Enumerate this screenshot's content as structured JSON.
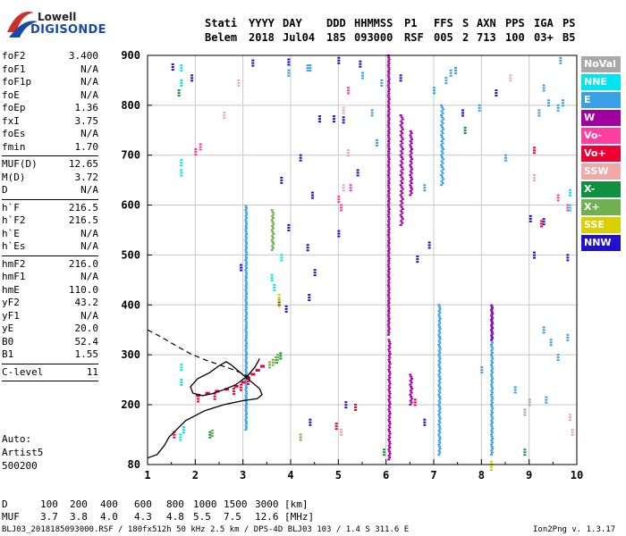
{
  "logo": {
    "line1": "Lowell",
    "line2": "DIGISONDE"
  },
  "header": {
    "row1": [
      "Stati",
      "YYYY",
      "DAY",
      "DDD",
      "HHMMSS",
      "P1",
      "FFS",
      "S",
      "AXN",
      "PPS",
      "IGA",
      "PS"
    ],
    "row2": [
      "Belem",
      "2018",
      "Jul04",
      "185",
      "093000",
      "RSF",
      "005",
      "2",
      "713",
      "100",
      "03+",
      "B5"
    ]
  },
  "params": {
    "g1": [
      [
        "foF2",
        "3.400"
      ],
      [
        "foF1",
        "N/A"
      ],
      [
        "foF1p",
        "N/A"
      ],
      [
        "foE",
        "N/A"
      ],
      [
        "foEp",
        "1.36"
      ],
      [
        "fxI",
        "3.75"
      ],
      [
        "foEs",
        "N/A"
      ],
      [
        "fmin",
        "1.70"
      ]
    ],
    "g2": [
      [
        "MUF(D)",
        "12.65"
      ],
      [
        "M(D)",
        "3.72"
      ],
      [
        "D",
        "N/A"
      ]
    ],
    "g3": [
      [
        "h`F",
        "216.5"
      ],
      [
        "h`F2",
        "216.5"
      ],
      [
        "h`E",
        "N/A"
      ],
      [
        "h`Es",
        "N/A"
      ]
    ],
    "g4": [
      [
        "hmF2",
        "216.0"
      ],
      [
        "hmF1",
        "N/A"
      ],
      [
        "hmE",
        "110.0"
      ],
      [
        "yF2",
        "43.2"
      ],
      [
        "yF1",
        "N/A"
      ],
      [
        "yE",
        "20.0"
      ],
      [
        "B0",
        "52.4"
      ],
      [
        "B1",
        "1.55"
      ]
    ],
    "g5": [
      [
        "C-level",
        "11"
      ]
    ]
  },
  "auto": {
    "line1": "Auto:",
    "line2": "Artist5",
    "line3": "500200"
  },
  "legend": [
    {
      "label": "NoVal",
      "color": "#a8a8a8"
    },
    {
      "label": "NNE",
      "color": "#00e5f0"
    },
    {
      "label": "E",
      "color": "#3aa0e8"
    },
    {
      "label": "W",
      "color": "#a000a0"
    },
    {
      "label": "Vo-",
      "color": "#ff3fa0"
    },
    {
      "label": "Vo+",
      "color": "#ee0033"
    },
    {
      "label": "SSW",
      "color": "#f0a8a8"
    },
    {
      "label": "X-",
      "color": "#109040"
    },
    {
      "label": "X+",
      "color": "#70b050"
    },
    {
      "label": "SSE",
      "color": "#d8d000"
    },
    {
      "label": "NNW",
      "color": "#2010d0"
    }
  ],
  "chart_data": {
    "type": "scatter",
    "title": "",
    "xlabel": "",
    "ylabel": "",
    "x_range": [
      1,
      10
    ],
    "y_range": [
      80,
      900
    ],
    "x_ticks": [
      1,
      2,
      3,
      4,
      5,
      6,
      7,
      8,
      9,
      10
    ],
    "y_ticks": [
      80,
      200,
      300,
      400,
      500,
      600,
      700,
      800,
      900
    ],
    "grid": true,
    "legend_position": "right",
    "profile_solid": [
      [
        1.0,
        93
      ],
      [
        1.2,
        100
      ],
      [
        1.35,
        118
      ],
      [
        1.45,
        135
      ],
      [
        1.8,
        168
      ],
      [
        2.2,
        188
      ],
      [
        2.6,
        200
      ],
      [
        3.0,
        208
      ],
      [
        3.3,
        212
      ],
      [
        3.4,
        220
      ],
      [
        3.35,
        232
      ],
      [
        3.2,
        244
      ],
      [
        3.05,
        256
      ],
      [
        2.9,
        268
      ],
      [
        2.75,
        280
      ],
      [
        2.65,
        286
      ],
      [
        2.5,
        278
      ],
      [
        2.3,
        264
      ],
      [
        2.05,
        252
      ],
      [
        1.9,
        236
      ],
      [
        1.95,
        223
      ],
      [
        2.15,
        218
      ],
      [
        2.35,
        222
      ],
      [
        2.6,
        230
      ],
      [
        2.85,
        240
      ],
      [
        3.1,
        258
      ],
      [
        3.25,
        275
      ],
      [
        3.35,
        292
      ]
    ],
    "profile_dashed": [
      [
        1.0,
        350
      ],
      [
        1.3,
        335
      ],
      [
        1.6,
        318
      ],
      [
        1.9,
        302
      ],
      [
        2.2,
        290
      ],
      [
        2.5,
        280
      ],
      [
        2.8,
        270
      ],
      [
        3.0,
        262
      ],
      [
        3.2,
        252
      ]
    ],
    "echo_trace": [
      [
        2.05,
        218
      ],
      [
        2.25,
        222
      ],
      [
        2.45,
        226
      ],
      [
        2.65,
        230
      ],
      [
        2.85,
        236
      ],
      [
        3.0,
        244
      ],
      [
        3.1,
        252
      ],
      [
        3.2,
        260
      ],
      [
        3.3,
        268
      ],
      [
        3.4,
        276
      ]
    ],
    "echo_bands": [
      {
        "color": "#a000a0",
        "x": 6.04,
        "y0": 340,
        "y1": 900,
        "dx": 0.02
      },
      {
        "color": "#a000a0",
        "x": 6.05,
        "y0": 90,
        "y1": 330,
        "dx": 0.03
      },
      {
        "color": "#a000a0",
        "x": 6.3,
        "y0": 560,
        "y1": 780,
        "dx": 0.05
      },
      {
        "color": "#a000a0",
        "x": 6.5,
        "y0": 620,
        "y1": 750,
        "dx": 0.04
      },
      {
        "color": "#a000a0",
        "x": 6.5,
        "y0": 200,
        "y1": 260,
        "dx": 0.04
      },
      {
        "color": "#3aa0e8",
        "x": 7.15,
        "y0": 640,
        "y1": 800,
        "dx": 0.05
      },
      {
        "color": "#3aa0e8",
        "x": 7.1,
        "y0": 100,
        "y1": 400,
        "dx": 0.03
      },
      {
        "color": "#3aa0e8",
        "x": 8.2,
        "y0": 100,
        "y1": 400,
        "dx": 0.03
      },
      {
        "color": "#a000a0",
        "x": 8.2,
        "y0": 330,
        "y1": 400,
        "dx": 0.03
      },
      {
        "color": "#3aa0e8",
        "x": 3.05,
        "y0": 150,
        "y1": 600,
        "dx": 0.02
      },
      {
        "color": "#70b050",
        "x": 3.6,
        "y0": 510,
        "y1": 590,
        "dx": 0.04
      }
    ],
    "echo_points": [
      {
        "c": "#2010d0",
        "p": [
          [
            1.52,
            882
          ],
          [
            3.2,
            890
          ],
          [
            3.95,
            892
          ],
          [
            5.0,
            895
          ],
          [
            5.45,
            888
          ],
          [
            6.3,
            860
          ],
          [
            7.6,
            790
          ],
          [
            8.3,
            830
          ],
          [
            9.02,
            578
          ],
          [
            9.3,
            572
          ],
          [
            6.9,
            525
          ],
          [
            5.4,
            670
          ],
          [
            4.2,
            700
          ],
          [
            4.45,
            625
          ],
          [
            3.95,
            560
          ],
          [
            4.35,
            520
          ],
          [
            4.5,
            470
          ],
          [
            4.38,
            420
          ],
          [
            3.75,
            410
          ],
          [
            2.95,
            480
          ],
          [
            3.9,
            397
          ],
          [
            1.92,
            860
          ],
          [
            4.9,
            778
          ],
          [
            5.1,
            776
          ],
          [
            4.6,
            778
          ],
          [
            3.8,
            655
          ],
          [
            5.0,
            548
          ],
          [
            6.65,
            497
          ],
          [
            9.1,
            505
          ],
          [
            9.8,
            500
          ],
          [
            5.15,
            205
          ],
          [
            4.4,
            170
          ],
          [
            6.8,
            170
          ]
        ]
      },
      {
        "c": "#3aa0e8",
        "p": [
          [
            7.0,
            835
          ],
          [
            7.25,
            855
          ],
          [
            7.35,
            870
          ],
          [
            7.45,
            875
          ],
          [
            9.65,
            895
          ],
          [
            9.4,
            810
          ],
          [
            9.6,
            800
          ],
          [
            9.7,
            810
          ],
          [
            9.3,
            840
          ],
          [
            9.2,
            790
          ],
          [
            7.95,
            800
          ],
          [
            8.5,
            700
          ],
          [
            6.8,
            640
          ],
          [
            4.4,
            880
          ],
          [
            5.5,
            865
          ],
          [
            5.7,
            790
          ],
          [
            5.8,
            730
          ],
          [
            8.0,
            275
          ],
          [
            9.3,
            355
          ],
          [
            9.45,
            330
          ],
          [
            9.6,
            300
          ],
          [
            9.35,
            215
          ],
          [
            9.8,
            340
          ],
          [
            8.7,
            235
          ],
          [
            5.9,
            850
          ],
          [
            3.95,
            870
          ],
          [
            4.35,
            880
          ]
        ]
      },
      {
        "c": "#00e5f0",
        "p": [
          [
            1.7,
            880
          ],
          [
            1.7,
            850
          ],
          [
            1.7,
            690
          ],
          [
            1.7,
            670
          ],
          [
            1.7,
            280
          ],
          [
            1.7,
            250
          ],
          [
            1.68,
            140
          ],
          [
            1.75,
            155
          ],
          [
            9.85,
            630
          ],
          [
            9.85,
            600
          ],
          [
            3.8,
            500
          ],
          [
            3.6,
            460
          ],
          [
            3.65,
            440
          ]
        ]
      },
      {
        "c": "#ff3fa0",
        "p": [
          [
            5.2,
            835
          ],
          [
            2.0,
            712
          ],
          [
            2.1,
            722
          ],
          [
            5.0,
            617
          ],
          [
            5.05,
            600
          ],
          [
            9.8,
            600
          ],
          [
            9.6,
            620
          ],
          [
            5.25,
            640
          ]
        ]
      },
      {
        "c": "#ee0033",
        "p": [
          [
            2.05,
            217
          ],
          [
            2.4,
            222
          ],
          [
            2.8,
            232
          ],
          [
            2.95,
            240
          ],
          [
            3.1,
            252
          ],
          [
            9.1,
            715
          ],
          [
            9.25,
            568
          ],
          [
            4.95,
            162
          ],
          [
            5.35,
            200
          ],
          [
            6.6,
            210
          ],
          [
            1.55,
            145
          ]
        ]
      },
      {
        "c": "#f0a8a8",
        "p": [
          [
            2.6,
            785
          ],
          [
            5.1,
            795
          ],
          [
            5.2,
            710
          ],
          [
            5.1,
            640
          ],
          [
            9.1,
            660
          ],
          [
            9.85,
            180
          ],
          [
            9.9,
            150
          ],
          [
            5.05,
            150
          ],
          [
            2.9,
            850
          ],
          [
            8.6,
            860
          ]
        ]
      },
      {
        "c": "#109040",
        "p": [
          [
            7.65,
            755
          ],
          [
            3.7,
            295
          ],
          [
            3.78,
            303
          ],
          [
            1.65,
            830
          ],
          [
            2.3,
            145
          ],
          [
            8.9,
            110
          ],
          [
            5.95,
            110
          ]
        ]
      },
      {
        "c": "#70b050",
        "p": [
          [
            3.55,
            285
          ],
          [
            3.62,
            290
          ],
          [
            3.68,
            295
          ],
          [
            3.72,
            300
          ],
          [
            4.2,
            140
          ],
          [
            2.35,
            148
          ]
        ]
      },
      {
        "c": "#d8d000",
        "p": [
          [
            8.2,
            80
          ],
          [
            8.2,
            86
          ],
          [
            3.75,
            408
          ],
          [
            3.75,
            420
          ]
        ]
      },
      {
        "c": "#a8a8a8",
        "p": [
          [
            9.0,
            210
          ],
          [
            8.9,
            190
          ]
        ]
      }
    ]
  },
  "axes": {
    "x_labels": [
      "1",
      "2",
      "3",
      "4",
      "5",
      "6",
      "7",
      "8",
      "9",
      "10"
    ],
    "y_labels": [
      "80",
      "200",
      "300",
      "400",
      "500",
      "600",
      "700",
      "800",
      "900"
    ]
  },
  "footer": {
    "d_label": "D",
    "d_values": [
      "100",
      "200",
      "400",
      "600",
      "800",
      "1000",
      "1500",
      "3000",
      "[km]"
    ],
    "muf_label": "MUF",
    "muf_values": [
      "3.7",
      "3.8",
      "4.0",
      "4.3",
      "4.8",
      "5.5",
      "7.5",
      "12.6",
      "[MHz]"
    ],
    "file_line": "BLJ03_2018185093000.RSF / 180fx512h 50 kHz 2.5 km / DPS-4D BLJ03 103 / 1.4 S 311.6 E",
    "version": "Ion2Png v. 1.3.17"
  }
}
